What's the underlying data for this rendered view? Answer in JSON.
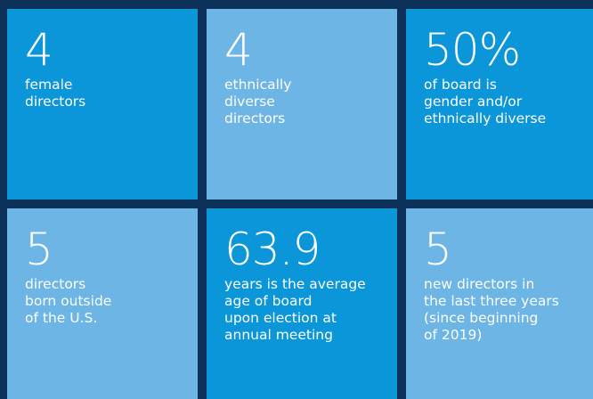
{
  "tiles": [
    {
      "value": "4",
      "lines": [
        "female",
        "directors"
      ]
    },
    {
      "value": "4",
      "lines": [
        "ethnically",
        "diverse",
        "directors"
      ]
    },
    {
      "value": "50%",
      "lines": [
        "of board is",
        "gender and/or",
        "ethnically diverse"
      ]
    },
    {
      "value": "5",
      "lines": [
        "directors",
        "born outside",
        "of the U.S."
      ]
    },
    {
      "value": "63.9",
      "lines": [
        "years is the average",
        "age of board",
        "upon election at",
        "annual meeting"
      ]
    },
    {
      "value": "5",
      "lines": [
        "new directors in",
        "the last three years",
        "(since beginning",
        "of 2019)"
      ]
    }
  ]
}
